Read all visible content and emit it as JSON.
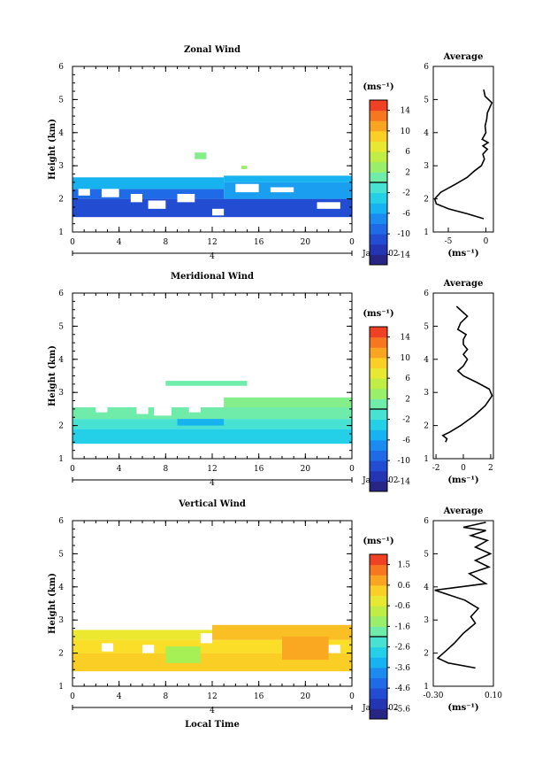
{
  "chart_data": [
    {
      "type": "heatmap",
      "title": "Zonal Wind",
      "ylabel": "Height (km)",
      "xlabel": "",
      "x_ticks": [
        "0",
        "4",
        "8",
        "12",
        "16",
        "20",
        "0"
      ],
      "y_ticks": [
        "1",
        "2",
        "3",
        "4",
        "5",
        "6"
      ],
      "xlim": [
        0,
        24
      ],
      "ylim": [
        1,
        6
      ],
      "date_label": "4",
      "date_suffix": "Jan 2002",
      "colorbar": {
        "label": "(ms⁻¹)",
        "ticks": [
          "14",
          "10",
          "6",
          "2",
          "-2",
          "-6",
          "-10",
          "-14"
        ],
        "range": [
          -16,
          16
        ]
      },
      "cells": [
        {
          "x0": 0,
          "x1": 24,
          "y0": 1.45,
          "y1": 2.0,
          "v": -11
        },
        {
          "x0": 0,
          "x1": 13,
          "y0": 2.0,
          "y1": 2.3,
          "v": -9
        },
        {
          "x0": 13,
          "x1": 24,
          "y0": 2.0,
          "y1": 2.5,
          "v": -6
        },
        {
          "x0": 0,
          "x1": 13,
          "y0": 2.3,
          "y1": 2.65,
          "v": -5
        },
        {
          "x0": 13,
          "x1": 24,
          "y0": 2.5,
          "y1": 2.7,
          "v": -5
        },
        {
          "x0": 10.5,
          "x1": 11.5,
          "y0": 3.2,
          "y1": 3.4,
          "v": 2
        },
        {
          "x0": 14.5,
          "x1": 15,
          "y0": 2.9,
          "y1": 3.0,
          "v": 3
        }
      ],
      "gaps": [
        {
          "x0": 0.5,
          "x1": 1.5,
          "y0": 2.1,
          "y1": 2.3
        },
        {
          "x0": 2.5,
          "x1": 4,
          "y0": 2.05,
          "y1": 2.3
        },
        {
          "x0": 5,
          "x1": 6,
          "y0": 1.9,
          "y1": 2.15
        },
        {
          "x0": 6.5,
          "x1": 8,
          "y0": 1.7,
          "y1": 1.95
        },
        {
          "x0": 9,
          "x1": 10.5,
          "y0": 1.9,
          "y1": 2.15
        },
        {
          "x0": 14,
          "x1": 16,
          "y0": 2.2,
          "y1": 2.45
        },
        {
          "x0": 17,
          "x1": 19,
          "y0": 2.2,
          "y1": 2.35
        },
        {
          "x0": 21,
          "x1": 23,
          "y0": 1.7,
          "y1": 1.9
        },
        {
          "x0": 12,
          "x1": 13,
          "y0": 1.5,
          "y1": 1.7
        }
      ],
      "average": {
        "title": "Average",
        "xlabel": "(ms⁻¹)",
        "x_ticks": [
          "-5",
          "0"
        ],
        "xlim": [
          -7,
          1
        ],
        "x": [
          -0.3,
          -2.5,
          -5,
          -6.6,
          -6.8,
          -6,
          -4,
          -2.5,
          -1.5,
          -0.6,
          -0.2,
          -0.4,
          0.2,
          -0.4,
          0.3,
          -0.5,
          0,
          -0.1,
          0.1,
          0.2,
          0.8,
          -0.1,
          -0.3
        ],
        "y": [
          1.4,
          1.55,
          1.7,
          1.85,
          2.0,
          2.2,
          2.45,
          2.65,
          2.85,
          3.0,
          3.2,
          3.35,
          3.5,
          3.6,
          3.7,
          3.8,
          4.0,
          4.2,
          4.4,
          4.6,
          4.9,
          5.1,
          5.3
        ]
      }
    },
    {
      "type": "heatmap",
      "title": "Meridional Wind",
      "ylabel": "Height (km)",
      "xlabel": "",
      "x_ticks": [
        "0",
        "4",
        "8",
        "12",
        "16",
        "20",
        "0"
      ],
      "y_ticks": [
        "1",
        "2",
        "3",
        "4",
        "5",
        "6"
      ],
      "xlim": [
        0,
        24
      ],
      "ylim": [
        1,
        6
      ],
      "date_label": "4",
      "date_suffix": "Jan 2002",
      "colorbar": {
        "label": "(ms⁻¹)",
        "ticks": [
          "14",
          "10",
          "6",
          "2",
          "-2",
          "-6",
          "-10",
          "-14"
        ],
        "range": [
          -16,
          16
        ]
      },
      "cells": [
        {
          "x0": 0,
          "x1": 24,
          "y0": 1.45,
          "y1": 1.9,
          "v": -3
        },
        {
          "x0": 0,
          "x1": 24,
          "y0": 1.9,
          "y1": 2.2,
          "v": -1
        },
        {
          "x0": 0,
          "x1": 24,
          "y0": 2.2,
          "y1": 2.55,
          "v": 1
        },
        {
          "x0": 13,
          "x1": 24,
          "y0": 2.55,
          "y1": 2.85,
          "v": 2
        },
        {
          "x0": 9,
          "x1": 13,
          "y0": 2.0,
          "y1": 2.2,
          "v": -5
        },
        {
          "x0": 8,
          "x1": 15,
          "y0": 3.2,
          "y1": 3.35,
          "v": 1
        }
      ],
      "gaps": [
        {
          "x0": 2,
          "x1": 3,
          "y0": 2.4,
          "y1": 2.55
        },
        {
          "x0": 5.5,
          "x1": 6.5,
          "y0": 2.35,
          "y1": 2.55
        },
        {
          "x0": 7,
          "x1": 8.5,
          "y0": 2.3,
          "y1": 2.55
        },
        {
          "x0": 10,
          "x1": 11,
          "y0": 2.4,
          "y1": 2.55
        }
      ],
      "average": {
        "title": "Average",
        "xlabel": "(ms⁻¹)",
        "x_ticks": [
          "-2",
          "0",
          "2"
        ],
        "xlim": [
          -2.2,
          2.2
        ],
        "x": [
          -1.3,
          -1.2,
          -1.5,
          -1,
          -0.2,
          0.8,
          1.6,
          2.1,
          1.9,
          1.0,
          0,
          -0.4,
          0,
          0.3,
          0,
          0.3,
          0,
          0,
          0.2,
          -0.4,
          -0.2,
          0.3,
          -0.5
        ],
        "y": [
          1.5,
          1.6,
          1.7,
          1.8,
          2.0,
          2.3,
          2.6,
          2.9,
          3.1,
          3.3,
          3.5,
          3.65,
          3.8,
          4.0,
          4.15,
          4.3,
          4.45,
          4.6,
          4.75,
          4.9,
          5.1,
          5.3,
          5.6
        ]
      }
    },
    {
      "type": "heatmap",
      "title": "Vertical Wind",
      "ylabel": "Height (km)",
      "xlabel": "Local Time",
      "x_ticks": [
        "0",
        "4",
        "8",
        "12",
        "16",
        "20",
        "0"
      ],
      "y_ticks": [
        "1",
        "2",
        "3",
        "4",
        "5",
        "6"
      ],
      "xlim": [
        0,
        24
      ],
      "ylim": [
        1,
        6
      ],
      "date_label": "4",
      "date_suffix": "Jan 2002",
      "colorbar": {
        "label": "(ms⁻¹)",
        "ticks": [
          "1.5",
          "0.6",
          "-0.6",
          "-1.6",
          "-2.6",
          "-3.6",
          "-4.6",
          "-5.6"
        ],
        "range": [
          -6.4,
          2.4
        ]
      },
      "cells": [
        {
          "x0": 0,
          "x1": 24,
          "y0": 1.45,
          "y1": 2.0,
          "v": 0.5
        },
        {
          "x0": 0,
          "x1": 24,
          "y0": 2.0,
          "y1": 2.4,
          "v": 0.3
        },
        {
          "x0": 0,
          "x1": 12,
          "y0": 2.4,
          "y1": 2.7,
          "v": 0.0
        },
        {
          "x0": 12,
          "x1": 24,
          "y0": 2.4,
          "y1": 2.85,
          "v": 0.7
        },
        {
          "x0": 8,
          "x1": 11,
          "y0": 1.7,
          "y1": 2.2,
          "v": -1.0
        },
        {
          "x0": 18,
          "x1": 22,
          "y0": 1.8,
          "y1": 2.5,
          "v": 1.0
        }
      ],
      "gaps": [
        {
          "x0": 2.5,
          "x1": 3.5,
          "y0": 2.05,
          "y1": 2.3
        },
        {
          "x0": 6,
          "x1": 7,
          "y0": 2.0,
          "y1": 2.25
        },
        {
          "x0": 11,
          "x1": 12,
          "y0": 2.3,
          "y1": 2.6
        },
        {
          "x0": 22,
          "x1": 23,
          "y0": 2.0,
          "y1": 2.25
        }
      ],
      "average": {
        "title": "Average",
        "xlabel": "(ms⁻¹)",
        "x_ticks": [
          "-0.30",
          "0.10"
        ],
        "xlim": [
          -0.3,
          0.1
        ],
        "x": [
          -0.02,
          -0.2,
          -0.27,
          -0.22,
          -0.16,
          -0.1,
          -0.02,
          -0.05,
          0.0,
          -0.09,
          -0.29,
          0.05,
          -0.06,
          0.07,
          -0.02,
          0.08,
          -0.02,
          0.06,
          -0.05,
          0.05,
          -0.1,
          0.05
        ],
        "y": [
          1.55,
          1.7,
          1.85,
          2.05,
          2.3,
          2.6,
          2.9,
          3.1,
          3.35,
          3.6,
          3.9,
          4.1,
          4.4,
          4.6,
          4.8,
          5.0,
          5.2,
          5.4,
          5.55,
          5.7,
          5.8,
          5.95
        ]
      }
    }
  ]
}
